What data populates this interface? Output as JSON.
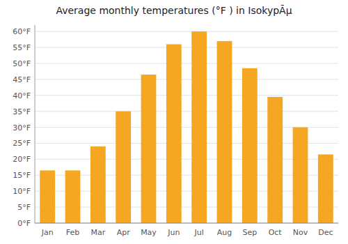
{
  "chart_data": {
    "type": "bar",
    "title": "Average monthly temperatures (°F ) in IsokyрÃµ",
    "categories": [
      "Jan",
      "Feb",
      "Mar",
      "Apr",
      "May",
      "Jun",
      "Jul",
      "Aug",
      "Sep",
      "Oct",
      "Nov",
      "Dec"
    ],
    "values": [
      16.5,
      16.5,
      24.0,
      35.0,
      46.5,
      56.0,
      60.0,
      57.0,
      48.5,
      39.5,
      30.0,
      21.5
    ],
    "color": "#F5A623",
    "ylim": [
      0,
      62
    ],
    "yticks": [
      {
        "value": 0,
        "label": "0°F"
      },
      {
        "value": 5,
        "label": "5°F"
      },
      {
        "value": 10,
        "label": "10°F"
      },
      {
        "value": 15,
        "label": "15°F"
      },
      {
        "value": 20,
        "label": "20°F"
      },
      {
        "value": 25,
        "label": "25°F"
      },
      {
        "value": 30,
        "label": "30°F"
      },
      {
        "value": 35,
        "label": "35°F"
      },
      {
        "value": 40,
        "label": "40°F"
      },
      {
        "value": 45,
        "label": "45°F"
      },
      {
        "value": 50,
        "label": "50°F"
      },
      {
        "value": 55,
        "label": "55°F"
      },
      {
        "value": 60,
        "label": "60°F"
      }
    ],
    "grid": true
  }
}
